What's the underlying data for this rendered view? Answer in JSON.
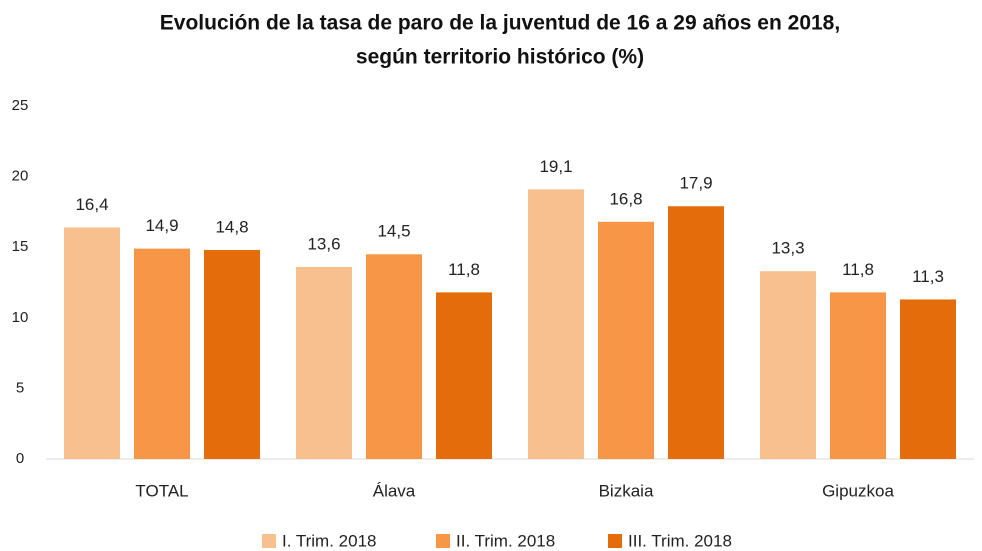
{
  "chart_data": {
    "type": "bar",
    "title": [
      "Evolución de la tasa de paro de la juventud de 16 a 29 años en 2018,",
      "según territorio histórico (%)"
    ],
    "categories": [
      "TOTAL",
      "Álava",
      "Bizkaia",
      "Gipuzkoa"
    ],
    "series": [
      {
        "name": "I. Trim. 2018",
        "color": "#f9c08f",
        "values": [
          16.4,
          13.6,
          19.1,
          13.3
        ],
        "value_labels": [
          "16,4",
          "13,6",
          "19,1",
          "13,3"
        ]
      },
      {
        "name": "II. Trim. 2018",
        "color": "#f79646",
        "values": [
          14.9,
          14.5,
          16.8,
          11.8
        ],
        "value_labels": [
          "14,9",
          "14,5",
          "16,8",
          "11,8"
        ]
      },
      {
        "name": "III. Trim. 2018",
        "color": "#e46c0a",
        "values": [
          14.8,
          11.8,
          17.9,
          11.3
        ],
        "value_labels": [
          "14,8",
          "11,8",
          "17,9",
          "11,3"
        ]
      }
    ],
    "ylim": [
      0,
      25
    ],
    "yticks": [
      0,
      5,
      10,
      15,
      20,
      25
    ],
    "grid": false,
    "legend": "bottom"
  }
}
